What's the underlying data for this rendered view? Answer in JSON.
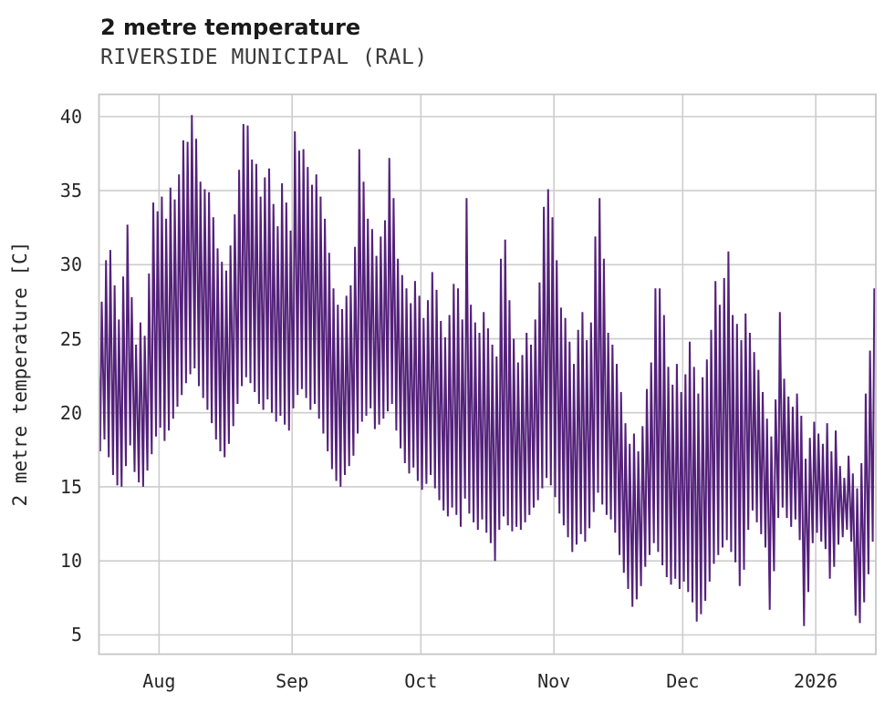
{
  "header": {
    "title": "2 metre temperature",
    "subtitle": "RIVERSIDE MUNICIPAL (RAL)"
  },
  "chart_data": {
    "type": "line",
    "title": "2 metre temperature",
    "subtitle": "RIVERSIDE MUNICIPAL (RAL)",
    "ylabel": "2 metre temperature [C]",
    "xlabel": "",
    "series_name": "2 metre temperature",
    "line_color": "#54217a",
    "grid_color": "#cdcdcd",
    "grid_on": true,
    "legend": "none",
    "ylim": [
      3.7,
      41.5
    ],
    "y_ticks": [
      5,
      10,
      15,
      20,
      25,
      30,
      35,
      40
    ],
    "x_ticks": [
      {
        "label": "Aug",
        "day": 14
      },
      {
        "label": "Sep",
        "day": 45
      },
      {
        "label": "Oct",
        "day": 75
      },
      {
        "label": "Nov",
        "day": 106
      },
      {
        "label": "Dec",
        "day": 136
      },
      {
        "label": "2026",
        "day": 167
      }
    ],
    "days_total": 181,
    "start_value": 22.5,
    "daily_max": [
      27.5,
      30.3,
      31.0,
      28.6,
      26.3,
      29.2,
      32.7,
      27.8,
      24.6,
      26.1,
      25.2,
      29.4,
      34.2,
      33.6,
      34.6,
      33.1,
      35.2,
      34.4,
      36.1,
      38.4,
      38.3,
      40.1,
      38.5,
      35.6,
      35.1,
      34.9,
      33.2,
      31.1,
      30.2,
      29.6,
      31.3,
      33.4,
      36.4,
      39.5,
      39.4,
      37.1,
      36.8,
      34.6,
      35.9,
      36.5,
      34.1,
      32.6,
      35.5,
      34.2,
      32.3,
      39.0,
      37.7,
      37.8,
      36.6,
      35.4,
      36.1,
      34.6,
      33.1,
      30.8,
      28.4,
      27.3,
      27.0,
      27.9,
      28.6,
      31.2,
      37.8,
      35.6,
      33.1,
      32.4,
      30.6,
      31.9,
      33.0,
      37.2,
      34.5,
      30.4,
      29.3,
      28.4,
      27.4,
      28.9,
      27.9,
      26.4,
      27.6,
      29.5,
      28.3,
      26.2,
      25.1,
      26.6,
      28.7,
      28.4,
      26.3,
      34.5,
      27.3,
      26.1,
      25.4,
      26.8,
      25.7,
      24.6,
      23.8,
      30.4,
      31.7,
      27.6,
      25.0,
      23.4,
      23.9,
      25.4,
      24.6,
      26.3,
      28.8,
      33.9,
      35.1,
      33.2,
      30.3,
      27.1,
      26.4,
      24.8,
      23.3,
      25.6,
      26.8,
      24.9,
      26.1,
      31.9,
      34.5,
      30.4,
      25.4,
      24.6,
      23.3,
      21.4,
      19.3,
      17.9,
      18.6,
      17.4,
      19.1,
      21.6,
      23.4,
      28.4,
      28.4,
      26.6,
      23.1,
      21.9,
      23.3,
      21.4,
      22.6,
      24.8,
      23.1,
      21.3,
      22.4,
      23.6,
      25.6,
      28.9,
      27.3,
      29.1,
      30.9,
      26.6,
      26.0,
      24.9,
      26.7,
      25.4,
      24.1,
      22.9,
      21.4,
      19.6,
      18.4,
      20.9,
      26.8,
      22.3,
      21.1,
      20.4,
      21.3,
      19.8,
      16.9,
      18.3,
      19.4,
      18.6,
      17.9,
      19.3,
      17.4,
      18.8,
      16.4,
      15.6,
      17.1,
      15.9,
      14.9,
      16.6,
      21.3,
      24.2,
      28.4
    ],
    "daily_min": [
      17.4,
      18.2,
      17.0,
      15.8,
      15.1,
      15.0,
      16.4,
      17.8,
      16.0,
      15.3,
      15.0,
      16.1,
      17.2,
      18.4,
      19.0,
      18.1,
      18.8,
      19.6,
      20.4,
      21.2,
      22.0,
      22.6,
      23.0,
      21.8,
      21.0,
      20.2,
      19.3,
      18.2,
      17.4,
      17.0,
      17.9,
      19.1,
      20.6,
      21.8,
      22.4,
      22.0,
      21.4,
      20.6,
      20.2,
      20.9,
      20.0,
      19.4,
      19.8,
      19.2,
      18.8,
      20.3,
      21.2,
      21.6,
      21.0,
      20.2,
      20.6,
      19.6,
      18.6,
      17.4,
      16.2,
      15.4,
      15.0,
      15.8,
      16.4,
      17.1,
      18.6,
      19.4,
      19.8,
      20.3,
      18.9,
      19.2,
      19.6,
      20.1,
      20.6,
      18.8,
      17.6,
      16.6,
      15.9,
      16.3,
      15.4,
      14.8,
      15.2,
      15.8,
      14.9,
      14.1,
      13.4,
      13.0,
      13.6,
      13.1,
      12.3,
      14.2,
      13.2,
      12.6,
      12.1,
      12.8,
      11.9,
      11.2,
      10.0,
      12.1,
      13.0,
      12.4,
      12.0,
      12.3,
      12.1,
      12.6,
      13.1,
      13.6,
      14.1,
      14.9,
      15.6,
      15.1,
      14.3,
      13.2,
      12.4,
      11.6,
      10.6,
      11.1,
      11.8,
      11.3,
      12.2,
      13.3,
      14.6,
      13.8,
      13.1,
      12.8,
      11.9,
      10.4,
      9.2,
      8.1,
      6.9,
      7.4,
      8.3,
      9.6,
      10.4,
      11.2,
      10.6,
      9.7,
      8.9,
      8.4,
      8.8,
      8.1,
      8.6,
      7.9,
      7.2,
      5.9,
      6.4,
      7.3,
      8.6,
      9.8,
      10.4,
      10.9,
      11.4,
      10.6,
      9.9,
      8.3,
      9.4,
      12.1,
      13.4,
      12.6,
      11.8,
      10.9,
      6.7,
      9.3,
      12.9,
      13.6,
      12.9,
      12.3,
      12.8,
      11.4,
      5.6,
      7.9,
      11.2,
      11.9,
      11.3,
      10.8,
      8.8,
      9.6,
      11.1,
      11.6,
      12.1,
      11.3,
      6.3,
      5.8,
      7.2,
      9.1,
      11.3
    ]
  }
}
